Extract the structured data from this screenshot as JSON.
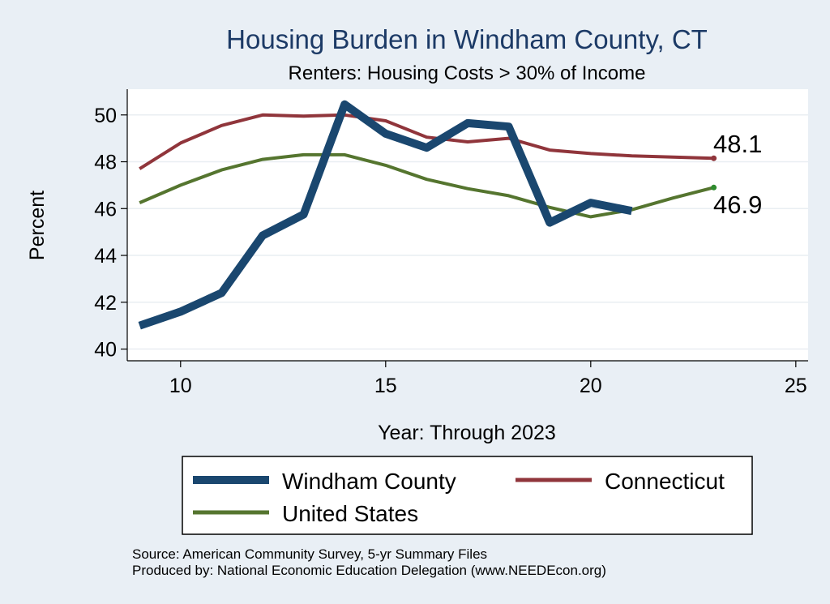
{
  "chart_data": {
    "type": "line",
    "title": "Housing Burden in Windham County, CT",
    "subtitle": "Renters: Housing Costs > 30% of Income",
    "xlabel": "Year: Through 2023",
    "ylabel": "Percent",
    "xlim": [
      8.7,
      25.3
    ],
    "ylim": [
      39.5,
      51.1
    ],
    "xticks": [
      10,
      15,
      20,
      25
    ],
    "yticks": [
      40,
      42,
      44,
      46,
      48,
      50
    ],
    "grid": true,
    "legend_position": "bottom",
    "series": [
      {
        "name": "Windham County",
        "color": "#1a476f",
        "x": [
          9,
          10,
          11,
          12,
          13,
          14,
          15,
          16,
          17,
          18,
          19,
          20,
          21
        ],
        "y": [
          41.0,
          41.6,
          42.4,
          44.85,
          45.75,
          50.45,
          49.2,
          48.6,
          49.65,
          49.5,
          45.4,
          46.25,
          45.9
        ]
      },
      {
        "name": "Connecticut",
        "color": "#90353b",
        "x": [
          9,
          10,
          11,
          12,
          13,
          14,
          15,
          16,
          17,
          18,
          19,
          20,
          21,
          22,
          23
        ],
        "y": [
          47.7,
          48.8,
          49.55,
          50.0,
          49.95,
          50.0,
          49.75,
          49.05,
          48.85,
          49.0,
          48.5,
          48.35,
          48.25,
          48.2,
          48.15
        ]
      },
      {
        "name": "United States",
        "color": "#55752f",
        "x": [
          9,
          10,
          11,
          12,
          13,
          14,
          15,
          16,
          17,
          18,
          19,
          20,
          21,
          22,
          23
        ],
        "y": [
          46.25,
          47.0,
          47.65,
          48.1,
          48.3,
          48.3,
          47.85,
          47.25,
          46.85,
          46.55,
          46.05,
          45.65,
          45.95,
          46.45,
          46.9
        ]
      }
    ],
    "end_labels": [
      "48.1",
      "46.9"
    ],
    "legend": {
      "items": [
        "Windham County",
        "Connecticut",
        "United States"
      ]
    },
    "notes": [
      "Source: American Community Survey, 5-yr Summary Files",
      "Produced by: National Economic Education Delegation (www.NEEDEcon.org)"
    ]
  },
  "colors": {
    "background": "#e9eff5",
    "plot_background": "#ffffff",
    "grid": "#e9eef2",
    "title": "#1c3a66",
    "windham": "#1a476f",
    "connecticut": "#90353b",
    "united_states": "#55752f",
    "end_marker_us": "#2e8b2e"
  }
}
